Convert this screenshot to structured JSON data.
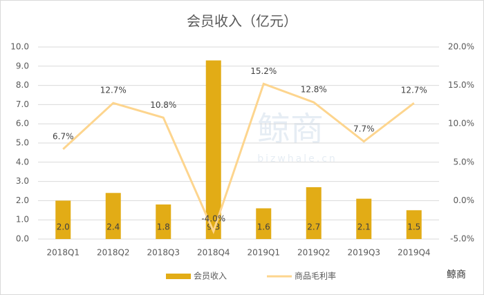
{
  "chart_data": {
    "type": "combo",
    "title": "会员收入（亿元）",
    "categories": [
      "2018Q1",
      "2018Q2",
      "2018Q3",
      "2018Q4",
      "2019Q1",
      "2019Q2",
      "2019Q3",
      "2019Q4"
    ],
    "series": [
      {
        "name": "会员收入",
        "type": "bar",
        "color": "#e2ac16",
        "values": [
          2.0,
          2.4,
          1.8,
          9.3,
          1.6,
          2.7,
          2.1,
          1.5
        ],
        "value_labels": [
          "2.0",
          "2.4",
          "1.8",
          "9.3",
          "1.6",
          "2.7",
          "2.1",
          "1.5"
        ]
      },
      {
        "name": "商品毛利率",
        "type": "line",
        "axis": "y2",
        "color": "#fdd58e",
        "values": [
          6.7,
          12.7,
          10.8,
          -4.0,
          15.2,
          12.8,
          7.7,
          12.7
        ],
        "value_labels": [
          "6.7%",
          "12.7%",
          "10.8%",
          "-4.0%",
          "15.2%",
          "12.8%",
          "7.7%",
          "12.7%"
        ]
      }
    ],
    "ylim": [
      0,
      10
    ],
    "yticks": [
      {
        "value": 0,
        "label": "0.0"
      },
      {
        "value": 1,
        "label": "1.0"
      },
      {
        "value": 2,
        "label": "2.0"
      },
      {
        "value": 3,
        "label": "3.0"
      },
      {
        "value": 4,
        "label": "4.0"
      },
      {
        "value": 5,
        "label": "5.0"
      },
      {
        "value": 6,
        "label": "6.0"
      },
      {
        "value": 7,
        "label": "7.0"
      },
      {
        "value": 8,
        "label": "8.0"
      },
      {
        "value": 9,
        "label": "9.0"
      },
      {
        "value": 10,
        "label": "10.0"
      }
    ],
    "y2lim": [
      -5,
      20
    ],
    "y2ticks": [
      {
        "value": -5,
        "label": "-5.0%"
      },
      {
        "value": 0,
        "label": "0.0%"
      },
      {
        "value": 5,
        "label": "5.0%"
      },
      {
        "value": 10,
        "label": "10.0%"
      },
      {
        "value": 15,
        "label": "15.0%"
      },
      {
        "value": 20,
        "label": "20.0%"
      }
    ],
    "grid": true,
    "legend": "bottom",
    "watermark": "bizwhale.cn",
    "brand": "鲸商"
  }
}
